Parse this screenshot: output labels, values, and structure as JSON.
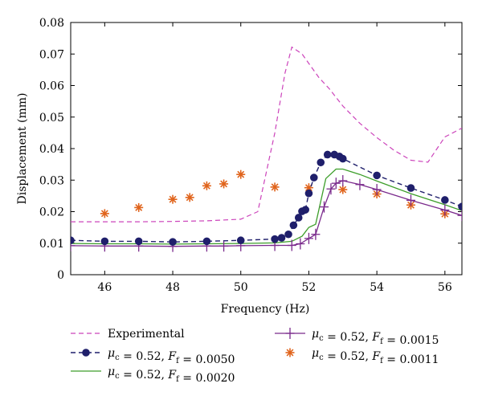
{
  "chart_data": {
    "type": "line",
    "xlabel": "Frequency (Hz)",
    "ylabel": "Displacement (mm)",
    "xlim": [
      45,
      56.5
    ],
    "ylim": [
      0,
      0.08
    ],
    "xticks": [
      46,
      48,
      50,
      52,
      54,
      56
    ],
    "yticks": [
      0,
      0.01,
      0.02,
      0.03,
      0.04,
      0.05,
      0.06,
      0.07,
      0.08
    ],
    "xtick_labels": [
      "46",
      "48",
      "50",
      "52",
      "54",
      "56"
    ],
    "ytick_labels": [
      "0",
      "0.01",
      "0.02",
      "0.03",
      "0.04",
      "0.05",
      "0.06",
      "0.07",
      "0.08"
    ],
    "grid": false,
    "legend_position": "bottom",
    "series": [
      {
        "name": "Experimental",
        "style": "dashed-line",
        "color": "#cc44bb",
        "x": [
          45,
          46,
          47,
          48,
          49,
          50,
          50.5,
          51,
          51.3,
          51.5,
          51.8,
          52,
          52.3,
          52.6,
          53,
          53.5,
          54,
          54.5,
          55,
          55.5,
          56,
          56.5
        ],
        "y": [
          0.0168,
          0.0168,
          0.0168,
          0.0169,
          0.0171,
          0.0176,
          0.02,
          0.045,
          0.064,
          0.0722,
          0.07,
          0.067,
          0.0625,
          0.059,
          0.0535,
          0.048,
          0.0435,
          0.0395,
          0.0363,
          0.0357,
          0.0437,
          0.0465
        ]
      },
      {
        "name": "μc = 0.52, Ff = 0.0050",
        "legend_parts": {
          "mu": "μ",
          "mu_sub": "c",
          "mu_val": " = 0.52, ",
          "f": "F",
          "f_sub": "f",
          "f_val": " = 0.0050"
        },
        "style": "dashed-line-circle",
        "color": "#1f1f6b",
        "x": [
          45,
          46,
          47,
          48,
          49,
          50,
          51,
          51.2,
          51.4,
          51.55,
          51.7,
          51.8,
          51.9,
          52,
          52.15,
          52.35,
          52.55,
          52.75,
          52.9,
          53,
          54,
          55,
          56,
          56.5
        ],
        "y": [
          0.0109,
          0.0106,
          0.0106,
          0.0104,
          0.0106,
          0.0109,
          0.0113,
          0.0117,
          0.0128,
          0.0157,
          0.0181,
          0.0201,
          0.0206,
          0.0258,
          0.0308,
          0.0356,
          0.0381,
          0.0381,
          0.0375,
          0.0368,
          0.0315,
          0.0275,
          0.0237,
          0.0216
        ]
      },
      {
        "name": "μc = 0.52, Ff = 0.0020",
        "legend_parts": {
          "mu": "μ",
          "mu_sub": "c",
          "mu_val": " = 0.52, ",
          "f": "F",
          "f_sub": "f",
          "f_val": " = 0.0020"
        },
        "style": "solid-line",
        "color": "#3d9e2a",
        "x": [
          45,
          46,
          47,
          48,
          49,
          50,
          51,
          51.5,
          51.8,
          52,
          52.2,
          52.5,
          52.8,
          53,
          53.5,
          54,
          55,
          56,
          56.5
        ],
        "y": [
          0.0099,
          0.0098,
          0.0098,
          0.0097,
          0.0098,
          0.0099,
          0.0101,
          0.0106,
          0.0122,
          0.015,
          0.016,
          0.0305,
          0.0335,
          0.0335,
          0.0318,
          0.0297,
          0.0257,
          0.0222,
          0.0203
        ]
      },
      {
        "name": "μc = 0.52, Ff = 0.0015",
        "legend_parts": {
          "mu": "μ",
          "mu_sub": "c",
          "mu_val": " = 0.52, ",
          "f": "F",
          "f_sub": "f",
          "f_val": " = 0.0015"
        },
        "style": "solid-line-plus",
        "color": "#7a2a8c",
        "x": [
          45,
          46,
          47,
          48,
          49,
          49.5,
          50,
          51,
          51.5,
          51.75,
          52,
          52.2,
          52.45,
          52.65,
          52.8,
          53,
          53.5,
          54,
          55,
          56,
          56.5
        ],
        "y": [
          0.0092,
          0.0091,
          0.0091,
          0.009,
          0.0091,
          0.0091,
          0.0092,
          0.0093,
          0.0093,
          0.0098,
          0.0115,
          0.0128,
          0.0215,
          0.0272,
          0.029,
          0.0298,
          0.0286,
          0.027,
          0.0236,
          0.0205,
          0.0188
        ]
      },
      {
        "name": "μc = 0.52, Ff = 0.0011",
        "legend_parts": {
          "mu": "μ",
          "mu_sub": "c",
          "mu_val": " = 0.52, ",
          "f": "F",
          "f_sub": "f",
          "f_val": " = 0.0011"
        },
        "style": "asterisk-markers",
        "color": "#e0641c",
        "x": [
          46,
          47,
          48,
          48.5,
          49,
          49.5,
          50,
          51,
          52,
          53,
          54,
          55,
          56
        ],
        "y": [
          0.0194,
          0.0213,
          0.0239,
          0.0245,
          0.0282,
          0.0288,
          0.0318,
          0.0278,
          0.0276,
          0.027,
          0.0256,
          0.0221,
          0.0193
        ]
      }
    ]
  }
}
